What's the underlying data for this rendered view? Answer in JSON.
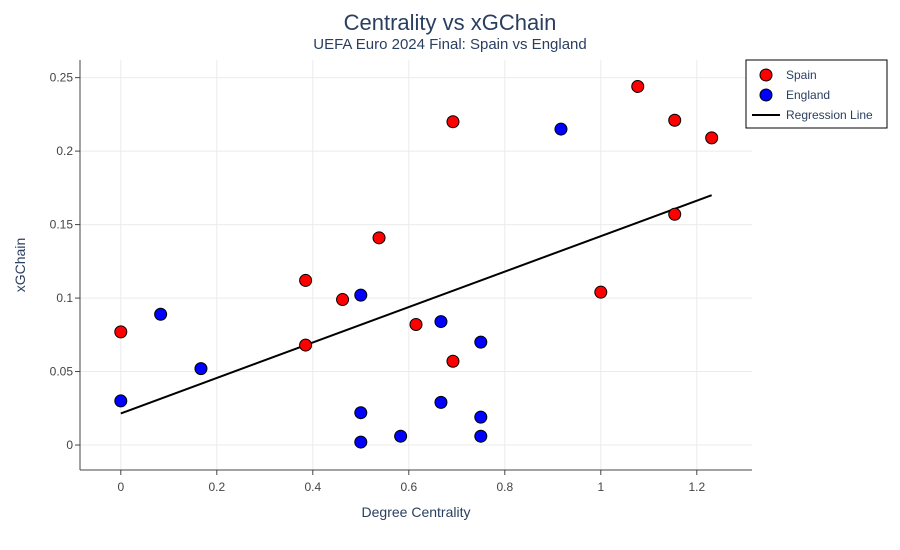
{
  "chart_data": {
    "type": "scatter",
    "title": "Centrality vs xGChain",
    "subtitle": "UEFA Euro 2024 Final: Spain vs England",
    "xlabel": "Degree Centrality",
    "ylabel": "xGChain",
    "xlim": [
      -0.085,
      1.315
    ],
    "ylim": [
      -0.017,
      0.262
    ],
    "x_ticks": [
      0,
      0.2,
      0.4,
      0.6,
      0.8,
      1,
      1.2
    ],
    "x_tick_labels": [
      "0",
      "0.2",
      "0.4",
      "0.6",
      "0.8",
      "1",
      "1.2"
    ],
    "y_ticks": [
      0,
      0.05,
      0.1,
      0.15,
      0.2,
      0.25
    ],
    "y_tick_labels": [
      "0",
      "0.05",
      "0.1",
      "0.15",
      "0.2",
      "0.25"
    ],
    "grid": true,
    "legend_position": "top-right",
    "series": [
      {
        "name": "Spain",
        "color": "#ff0000",
        "points": [
          {
            "x": 0.0,
            "y": 0.077
          },
          {
            "x": 0.385,
            "y": 0.112
          },
          {
            "x": 0.385,
            "y": 0.068
          },
          {
            "x": 0.462,
            "y": 0.099
          },
          {
            "x": 0.538,
            "y": 0.141
          },
          {
            "x": 0.615,
            "y": 0.082
          },
          {
            "x": 0.692,
            "y": 0.22
          },
          {
            "x": 0.692,
            "y": 0.057
          },
          {
            "x": 1.0,
            "y": 0.104
          },
          {
            "x": 1.077,
            "y": 0.244
          },
          {
            "x": 1.154,
            "y": 0.221
          },
          {
            "x": 1.154,
            "y": 0.157
          },
          {
            "x": 1.231,
            "y": 0.209
          }
        ]
      },
      {
        "name": "England",
        "color": "#0000ff",
        "points": [
          {
            "x": 0.0,
            "y": 0.03
          },
          {
            "x": 0.083,
            "y": 0.089
          },
          {
            "x": 0.167,
            "y": 0.052
          },
          {
            "x": 0.5,
            "y": 0.102
          },
          {
            "x": 0.5,
            "y": 0.022
          },
          {
            "x": 0.5,
            "y": 0.002
          },
          {
            "x": 0.583,
            "y": 0.006
          },
          {
            "x": 0.667,
            "y": 0.084
          },
          {
            "x": 0.667,
            "y": 0.029
          },
          {
            "x": 0.75,
            "y": 0.07
          },
          {
            "x": 0.75,
            "y": 0.019
          },
          {
            "x": 0.75,
            "y": 0.006
          },
          {
            "x": 0.917,
            "y": 0.215
          }
        ]
      },
      {
        "name": "Regression Line",
        "type": "line",
        "color": "#000000",
        "points": [
          {
            "x": 0.0,
            "y": 0.0215
          },
          {
            "x": 1.231,
            "y": 0.17
          }
        ]
      }
    ]
  }
}
